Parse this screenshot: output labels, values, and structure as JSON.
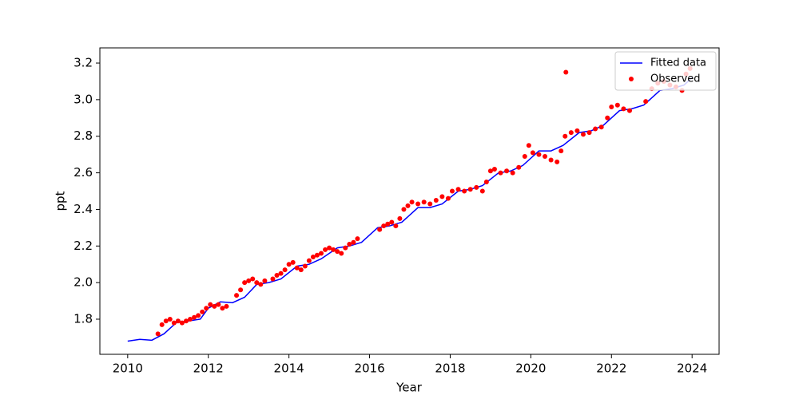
{
  "chart_data": {
    "type": "line",
    "xlabel": "Year",
    "ylabel": "ppt",
    "xlim": [
      2009.31,
      2024.67
    ],
    "ylim": [
      1.608,
      3.283
    ],
    "xticks": [
      2010,
      2012,
      2014,
      2016,
      2018,
      2020,
      2022,
      2024
    ],
    "yticks": [
      1.8,
      {
        "value": 2,
        "label": "2.0"
      },
      2.2,
      2.4,
      2.6,
      2.8,
      {
        "value": 3,
        "label": "3.0"
      },
      3.2
    ],
    "legend": "upper right",
    "series": [
      {
        "name": "Fitted data",
        "type": "line",
        "color": "#0000ff",
        "x": [
          2010,
          2010.3,
          2010.6,
          2010.9,
          2011.2,
          2011.5,
          2011.8,
          2012.0,
          2012.3,
          2012.6,
          2012.9,
          2013.2,
          2013.5,
          2013.8,
          2014.2,
          2014.5,
          2014.8,
          2015.2,
          2015.5,
          2015.8,
          2016.2,
          2016.5,
          2016.8,
          2017.2,
          2017.5,
          2017.8,
          2018.2,
          2018.5,
          2018.8,
          2019.2,
          2019.5,
          2019.8,
          2020.2,
          2020.5,
          2020.8,
          2021.2,
          2021.5,
          2021.8,
          2022.2,
          2022.5,
          2022.8,
          2023.2,
          2023.5,
          2023.8,
          2024.0
        ],
        "values": [
          1.68,
          1.69,
          1.685,
          1.72,
          1.78,
          1.79,
          1.8,
          1.86,
          1.895,
          1.89,
          1.92,
          1.99,
          2.0,
          2.02,
          2.09,
          2.1,
          2.13,
          2.19,
          2.2,
          2.22,
          2.3,
          2.31,
          2.33,
          2.41,
          2.41,
          2.43,
          2.5,
          2.51,
          2.53,
          2.6,
          2.61,
          2.64,
          2.72,
          2.72,
          2.75,
          2.82,
          2.83,
          2.86,
          2.94,
          2.95,
          2.97,
          3.05,
          3.06,
          3.08,
          3.12
        ]
      },
      {
        "name": "Observed",
        "type": "scatter",
        "color": "#ff0000",
        "x": [
          2010.75,
          2010.85,
          2010.95,
          2011.05,
          2011.15,
          2011.25,
          2011.35,
          2011.45,
          2011.55,
          2011.65,
          2011.75,
          2011.85,
          2011.95,
          2012.05,
          2012.15,
          2012.25,
          2012.35,
          2012.45,
          2012.7,
          2012.8,
          2012.9,
          2013.0,
          2013.1,
          2013.2,
          2013.3,
          2013.4,
          2013.6,
          2013.7,
          2013.8,
          2013.9,
          2014.0,
          2014.1,
          2014.2,
          2014.3,
          2014.4,
          2014.5,
          2014.6,
          2014.7,
          2014.8,
          2014.9,
          2015.0,
          2015.1,
          2015.2,
          2015.3,
          2015.4,
          2015.5,
          2015.6,
          2015.7,
          2016.25,
          2016.35,
          2016.45,
          2016.55,
          2016.65,
          2016.75,
          2016.85,
          2016.95,
          2017.05,
          2017.2,
          2017.35,
          2017.5,
          2017.65,
          2017.8,
          2017.95,
          2018.05,
          2018.2,
          2018.35,
          2018.5,
          2018.65,
          2018.8,
          2018.9,
          2019.0,
          2019.1,
          2019.25,
          2019.4,
          2019.55,
          2019.7,
          2019.85,
          2019.95,
          2020.05,
          2020.2,
          2020.35,
          2020.5,
          2020.65,
          2020.75,
          2020.85,
          2020.87,
          2021.0,
          2021.15,
          2021.3,
          2021.45,
          2021.6,
          2021.75,
          2021.9,
          2022.0,
          2022.15,
          2022.3,
          2022.45,
          2022.85,
          2023.0,
          2023.15,
          2023.3,
          2023.45,
          2023.6,
          2023.75,
          2023.85,
          2023.95
        ],
        "values": [
          1.72,
          1.77,
          1.79,
          1.8,
          1.78,
          1.79,
          1.78,
          1.79,
          1.8,
          1.81,
          1.82,
          1.84,
          1.86,
          1.88,
          1.87,
          1.88,
          1.86,
          1.87,
          1.93,
          1.96,
          2.0,
          2.01,
          2.02,
          2.0,
          1.99,
          2.01,
          2.02,
          2.04,
          2.05,
          2.07,
          2.1,
          2.11,
          2.08,
          2.07,
          2.09,
          2.12,
          2.14,
          2.15,
          2.16,
          2.18,
          2.19,
          2.18,
          2.17,
          2.16,
          2.19,
          2.21,
          2.22,
          2.24,
          2.29,
          2.31,
          2.32,
          2.33,
          2.31,
          2.35,
          2.4,
          2.42,
          2.44,
          2.43,
          2.44,
          2.43,
          2.45,
          2.47,
          2.46,
          2.5,
          2.51,
          2.5,
          2.51,
          2.52,
          2.5,
          2.55,
          2.61,
          2.62,
          2.6,
          2.61,
          2.6,
          2.63,
          2.69,
          2.75,
          2.71,
          2.7,
          2.69,
          2.67,
          2.66,
          2.72,
          2.8,
          3.15,
          2.82,
          2.83,
          2.81,
          2.82,
          2.84,
          2.85,
          2.9,
          2.96,
          2.97,
          2.95,
          2.94,
          2.99,
          3.06,
          3.09,
          3.1,
          3.08,
          3.07,
          3.05,
          3.14,
          3.17
        ]
      }
    ]
  }
}
